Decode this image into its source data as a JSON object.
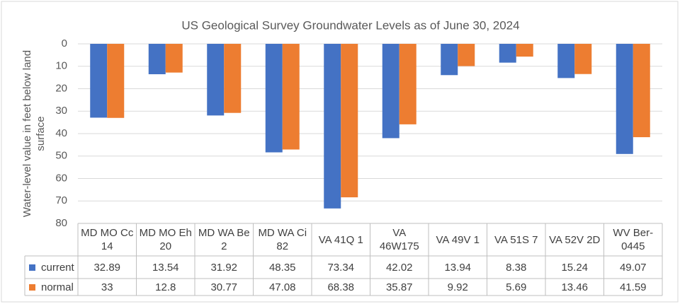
{
  "chart_data": {
    "type": "bar",
    "title": "US Geological Survey Groundwater Levels as of June 30, 2024",
    "y_axis_label": "Water-level value in feet below land surface",
    "categories": [
      "MD MO Cc 14",
      "MD MO Eh 20",
      "MD WA Be 2",
      "MD WA Ci 82",
      "VA 41Q 1",
      "VA 46W175",
      "VA 49V 1",
      "VA 51S 7",
      "VA 52V 2D",
      "WV Ber-0445"
    ],
    "series": [
      {
        "name": "current",
        "color": "#4472c4",
        "values": [
          32.89,
          13.54,
          31.92,
          48.35,
          73.34,
          42.02,
          13.94,
          8.38,
          15.24,
          49.07
        ]
      },
      {
        "name": "normal",
        "color": "#ed7d31",
        "values": [
          33,
          12.8,
          30.77,
          47.08,
          68.38,
          35.87,
          9.92,
          5.69,
          13.46,
          41.59
        ]
      }
    ],
    "ylim": [
      0,
      80
    ],
    "yticks": [
      0,
      10,
      20,
      30,
      40,
      50,
      60,
      70,
      80
    ],
    "y_reversed": true,
    "grid": true
  }
}
